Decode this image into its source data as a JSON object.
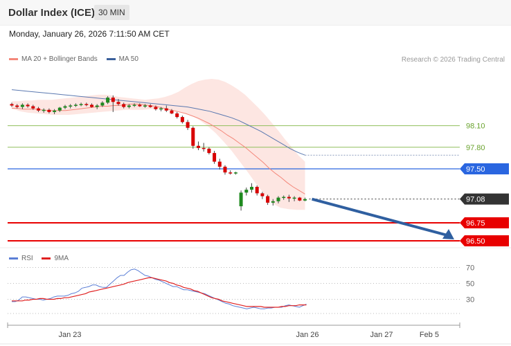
{
  "header": {
    "title": "Dollar Index (ICE)",
    "timeframe": "30 MIN",
    "datetime": "Monday, January 26, 2026 7:11:50 AM CET"
  },
  "legend": {
    "main": [
      {
        "label": "MA 20 + Bollinger Bands",
        "color": "#f4877a"
      },
      {
        "label": "MA 50",
        "color": "#3a5f9a"
      }
    ],
    "credit": "Research © 2026 Trading Central",
    "indicator": [
      {
        "label": "RSI",
        "color": "#5b7fd6"
      },
      {
        "label": "9MA",
        "color": "#e02020"
      }
    ]
  },
  "chart_data": [
    {
      "type": "candlestick",
      "title": "Dollar Index (ICE)",
      "xlabel": "",
      "ylabel": "",
      "x_tick_labels": [
        "Jan 23",
        "Jan 26",
        "Jan 27",
        "Feb 5"
      ],
      "ylim": [
        96.4,
        98.6
      ],
      "last_price": 97.08,
      "levels": [
        {
          "value": 98.1,
          "label": "98.10",
          "color": "#8fbf5a",
          "style": "thin"
        },
        {
          "value": 97.8,
          "label": "97.80",
          "color": "#8fbf5a",
          "style": "thin"
        },
        {
          "value": 97.5,
          "label": "97.50",
          "color": "#2a66e0",
          "style": "medium",
          "tag": true
        },
        {
          "value": 97.08,
          "label": "97.08",
          "color": "#333333",
          "style": "dotted",
          "tag": true
        },
        {
          "value": 96.75,
          "label": "96.75",
          "color": "#e80000",
          "style": "thick",
          "tag": true
        },
        {
          "value": 96.5,
          "label": "96.50",
          "color": "#e80000",
          "style": "thick",
          "tag": true
        }
      ],
      "candles": [
        [
          98.4,
          98.42,
          98.36,
          98.38
        ],
        [
          98.38,
          98.4,
          98.34,
          98.36
        ],
        [
          98.36,
          98.41,
          98.33,
          98.39
        ],
        [
          98.39,
          98.41,
          98.35,
          98.37
        ],
        [
          98.37,
          98.39,
          98.32,
          98.34
        ],
        [
          98.34,
          98.36,
          98.29,
          98.31
        ],
        [
          98.31,
          98.34,
          98.28,
          98.32
        ],
        [
          98.32,
          98.34,
          98.27,
          98.29
        ],
        [
          98.29,
          98.33,
          98.26,
          98.31
        ],
        [
          98.31,
          98.36,
          98.29,
          98.35
        ],
        [
          98.35,
          98.39,
          98.33,
          98.37
        ],
        [
          98.37,
          98.4,
          98.34,
          98.38
        ],
        [
          98.38,
          98.41,
          98.36,
          98.39
        ],
        [
          98.39,
          98.42,
          98.37,
          98.4
        ],
        [
          98.4,
          98.42,
          98.37,
          98.39
        ],
        [
          98.39,
          98.41,
          98.35,
          98.36
        ],
        [
          98.36,
          98.4,
          98.33,
          98.38
        ],
        [
          98.38,
          98.44,
          98.36,
          98.42
        ],
        [
          98.42,
          98.51,
          98.4,
          98.49
        ],
        [
          98.49,
          98.52,
          98.29,
          98.43
        ],
        [
          98.43,
          98.47,
          98.38,
          98.4
        ],
        [
          98.4,
          98.42,
          98.34,
          98.36
        ],
        [
          98.36,
          98.4,
          98.34,
          98.38
        ],
        [
          98.38,
          98.41,
          98.36,
          98.39
        ],
        [
          98.39,
          98.41,
          98.36,
          98.37
        ],
        [
          98.37,
          98.4,
          98.35,
          98.38
        ],
        [
          98.38,
          98.4,
          98.35,
          98.36
        ],
        [
          98.36,
          98.38,
          98.31,
          98.33
        ],
        [
          98.33,
          98.36,
          98.3,
          98.34
        ],
        [
          98.34,
          98.38,
          98.29,
          98.31
        ],
        [
          98.31,
          98.33,
          98.26,
          98.27
        ],
        [
          98.27,
          98.29,
          98.2,
          98.22
        ],
        [
          98.22,
          98.24,
          98.13,
          98.15
        ],
        [
          98.15,
          98.18,
          98.04,
          98.07
        ],
        [
          98.07,
          98.09,
          97.78,
          97.82
        ],
        [
          97.82,
          97.88,
          97.76,
          97.79
        ],
        [
          97.79,
          97.86,
          97.74,
          97.78
        ],
        [
          97.78,
          97.8,
          97.7,
          97.72
        ],
        [
          97.72,
          97.75,
          97.57,
          97.6
        ],
        [
          97.6,
          97.64,
          97.49,
          97.53
        ],
        [
          97.53,
          97.55,
          97.42,
          97.45
        ],
        [
          97.45,
          97.48,
          97.42,
          97.44
        ],
        [
          97.44,
          97.46,
          97.42,
          97.45
        ],
        [
          96.98,
          97.2,
          96.92,
          97.17
        ],
        [
          97.17,
          97.24,
          97.13,
          97.21
        ],
        [
          97.21,
          97.3,
          97.17,
          97.25
        ],
        [
          97.25,
          97.27,
          97.13,
          97.16
        ],
        [
          97.16,
          97.18,
          97.08,
          97.12
        ],
        [
          97.12,
          97.14,
          97.0,
          97.03
        ],
        [
          97.03,
          97.08,
          96.99,
          97.05
        ],
        [
          97.05,
          97.12,
          97.02,
          97.1
        ],
        [
          97.1,
          97.13,
          97.07,
          97.11
        ],
        [
          97.11,
          97.14,
          97.04,
          97.09
        ],
        [
          97.09,
          97.12,
          97.05,
          97.1
        ],
        [
          97.1,
          97.11,
          97.05,
          97.06
        ],
        [
          97.06,
          97.1,
          97.05,
          97.08
        ]
      ],
      "ma20": [
        98.34,
        98.34,
        98.33,
        98.33,
        98.33,
        98.32,
        98.31,
        98.31,
        98.31,
        98.31,
        98.32,
        98.33,
        98.34,
        98.35,
        98.36,
        98.37,
        98.37,
        98.38,
        98.38,
        98.39,
        98.4,
        98.4,
        98.39,
        98.38,
        98.37,
        98.35,
        98.33,
        98.31,
        98.29,
        98.27,
        98.24,
        98.21,
        98.17,
        98.13,
        98.08,
        98.03,
        97.97,
        97.92,
        97.86,
        97.8,
        97.73,
        97.66,
        97.59,
        97.51,
        97.44,
        97.38,
        97.31,
        97.25,
        97.2,
        97.15
      ],
      "bb_upper": [
        98.44,
        98.44,
        98.45,
        98.45,
        98.46,
        98.46,
        98.46,
        98.47,
        98.48,
        98.49,
        98.5,
        98.51,
        98.52,
        98.53,
        98.53,
        98.52,
        98.5,
        98.49,
        98.48,
        98.47,
        98.46,
        98.47,
        98.48,
        98.5,
        98.53,
        98.57,
        98.63,
        98.68,
        98.72,
        98.74,
        98.75,
        98.74,
        98.71,
        98.66,
        98.6,
        98.53,
        98.44,
        98.35,
        98.25,
        98.14,
        98.03,
        97.91,
        97.8,
        97.69,
        97.6
      ],
      "bb_lower": [
        98.34,
        98.3,
        98.28,
        98.27,
        98.26,
        98.25,
        98.25,
        98.25,
        98.26,
        98.27,
        98.28,
        98.29,
        98.3,
        98.31,
        98.32,
        98.32,
        98.32,
        98.33,
        98.33,
        98.32,
        98.31,
        98.28,
        98.24,
        98.18,
        98.1,
        98.0,
        97.88,
        97.75,
        97.6,
        97.45,
        97.29,
        97.15,
        97.02,
        96.96,
        96.94,
        96.93,
        96.93
      ],
      "ma50": [
        98.6,
        98.59,
        98.58,
        98.57,
        98.56,
        98.55,
        98.54,
        98.53,
        98.52,
        98.51,
        98.5,
        98.49,
        98.48,
        98.47,
        98.46,
        98.45,
        98.44,
        98.43,
        98.42,
        98.41,
        98.4,
        98.39,
        98.38,
        98.37,
        98.36,
        98.34,
        98.32,
        98.3,
        98.27,
        98.24,
        98.21,
        98.17,
        98.12,
        98.07,
        98.02,
        97.96,
        97.9,
        97.84,
        97.78,
        97.73,
        97.69
      ]
    },
    {
      "type": "line",
      "title": "RSI",
      "xlabel": "",
      "ylabel": "",
      "ylim": [
        0,
        100
      ],
      "y_tick_labels": [
        "70",
        "50",
        "30"
      ],
      "series": [
        {
          "name": "RSI",
          "values": [
            27,
            27,
            29,
            33,
            33,
            32,
            31,
            30,
            30,
            29,
            30,
            31,
            33,
            34,
            34,
            34,
            35,
            37,
            38,
            40,
            44,
            45,
            46,
            48,
            48,
            46,
            45,
            45,
            49,
            53,
            57,
            60,
            60,
            64,
            67,
            68,
            66,
            63,
            60,
            59,
            57,
            55,
            54,
            52,
            50,
            48,
            46,
            46,
            44,
            42,
            42,
            41,
            40,
            39,
            38,
            37,
            35,
            33,
            31,
            29,
            27,
            25,
            24,
            22,
            21,
            20,
            19,
            18,
            19,
            20,
            19,
            18,
            18,
            19,
            19,
            20,
            20,
            20,
            22,
            23,
            22,
            21,
            20,
            22,
            24
          ]
        },
        {
          "name": "9MA",
          "values": [
            28,
            28,
            28,
            28,
            29,
            29,
            30,
            30,
            31,
            31,
            30,
            30,
            30,
            31,
            31,
            32,
            32,
            33,
            34,
            35,
            36,
            37,
            39,
            40,
            41,
            42,
            43,
            44,
            45,
            46,
            47,
            48,
            49,
            51,
            52,
            53,
            54,
            55,
            56,
            57,
            57,
            56,
            55,
            54,
            53,
            51,
            50,
            48,
            47,
            45,
            44,
            43,
            41,
            40,
            38,
            36,
            34,
            32,
            31,
            30,
            28,
            27,
            26,
            25,
            24,
            23,
            22,
            21,
            21,
            21,
            21,
            21,
            20,
            20,
            20,
            20,
            20,
            21,
            21,
            22,
            22,
            22,
            23,
            23,
            23
          ]
        }
      ]
    }
  ]
}
